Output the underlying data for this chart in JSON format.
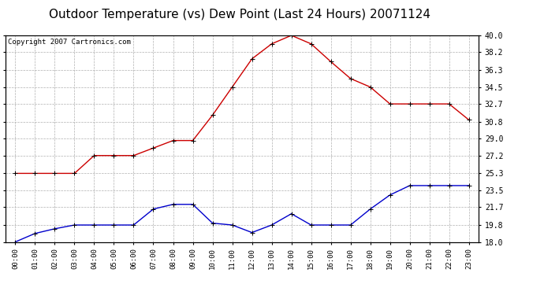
{
  "title": "Outdoor Temperature (vs) Dew Point (Last 24 Hours) 20071124",
  "copyright": "Copyright 2007 Cartronics.com",
  "hours": [
    "00:00",
    "01:00",
    "02:00",
    "03:00",
    "04:00",
    "05:00",
    "06:00",
    "07:00",
    "08:00",
    "09:00",
    "10:00",
    "11:00",
    "12:00",
    "13:00",
    "14:00",
    "15:00",
    "16:00",
    "17:00",
    "18:00",
    "19:00",
    "20:00",
    "21:00",
    "22:00",
    "23:00"
  ],
  "temp": [
    25.3,
    25.3,
    25.3,
    25.3,
    27.2,
    27.2,
    27.2,
    28.0,
    28.8,
    28.8,
    31.5,
    34.5,
    37.5,
    39.1,
    40.0,
    39.1,
    37.2,
    35.4,
    34.5,
    32.7,
    32.7,
    32.7,
    32.7,
    31.0
  ],
  "dew": [
    18.0,
    18.9,
    19.4,
    19.8,
    19.8,
    19.8,
    19.8,
    21.5,
    22.0,
    22.0,
    20.0,
    19.8,
    19.0,
    19.8,
    21.0,
    19.8,
    19.8,
    19.8,
    21.5,
    23.0,
    24.0,
    24.0,
    24.0,
    24.0
  ],
  "ylim": [
    18.0,
    40.0
  ],
  "yticks": [
    18.0,
    19.8,
    21.7,
    23.5,
    25.3,
    27.2,
    29.0,
    30.8,
    32.7,
    34.5,
    36.3,
    38.2,
    40.0
  ],
  "bg_color": "#ffffff",
  "plot_bg": "#ffffff",
  "grid_color": "#b0b0b0",
  "temp_color": "#cc0000",
  "dew_color": "#0000cc",
  "title_fontsize": 11,
  "copyright_fontsize": 6.5
}
